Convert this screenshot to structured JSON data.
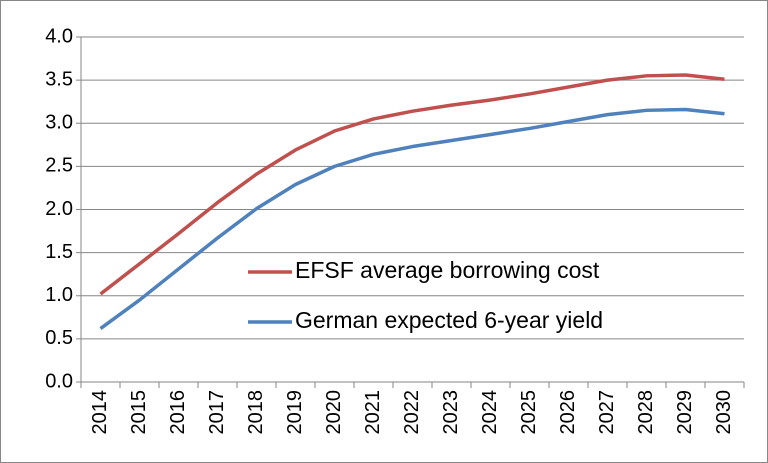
{
  "chart_data": {
    "type": "line",
    "categories": [
      "2014",
      "2015",
      "2016",
      "2017",
      "2018",
      "2019",
      "2020",
      "2021",
      "2022",
      "2023",
      "2024",
      "2025",
      "2026",
      "2027",
      "2028",
      "2029",
      "2030"
    ],
    "series": [
      {
        "name": "EFSF average borrowing cost",
        "color": "#c0504d",
        "values": [
          1.02,
          1.37,
          1.72,
          2.08,
          2.41,
          2.69,
          2.91,
          3.05,
          3.14,
          3.21,
          3.27,
          3.34,
          3.42,
          3.5,
          3.55,
          3.56,
          3.51
        ]
      },
      {
        "name": "German expected 6-year yield",
        "color": "#4f81bd",
        "values": [
          0.62,
          0.95,
          1.31,
          1.67,
          2.01,
          2.29,
          2.5,
          2.64,
          2.73,
          2.8,
          2.87,
          2.94,
          3.02,
          3.1,
          3.15,
          3.16,
          3.11
        ]
      }
    ],
    "ylim": [
      0,
      4
    ],
    "yticks": [
      {
        "value": 0,
        "label": "0.0"
      },
      0.5,
      {
        "value": 1,
        "label": "1.0"
      },
      1.5,
      {
        "value": 2,
        "label": "2.0"
      },
      2.5,
      {
        "value": 3,
        "label": "3.0"
      },
      3.5,
      {
        "value": 4,
        "label": "4.0"
      }
    ],
    "grid": true
  }
}
